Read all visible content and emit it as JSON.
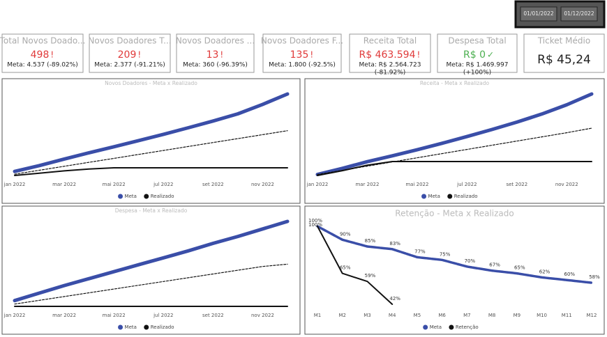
{
  "slicer": {
    "dates": [
      "01/01/2022",
      "01/12/2022"
    ]
  },
  "cards": [
    {
      "title": "Total Novos Doado...",
      "value": "498",
      "icon": "!",
      "color": "#e03a3a",
      "meta": [
        "Meta: 4.537 (-89.02%)"
      ]
    },
    {
      "title": "Novos Doadores T...",
      "value": "209",
      "icon": "!",
      "color": "#e03a3a",
      "meta": [
        "Meta: 2.377 (-91.21%)"
      ]
    },
    {
      "title": "Novos Doadores ...",
      "value": "13",
      "icon": "!",
      "color": "#e03a3a",
      "meta": [
        "Meta: 360 (-96.39%)"
      ]
    },
    {
      "title": "Novos Doadores F...",
      "value": "135",
      "icon": "!",
      "color": "#e03a3a",
      "meta": [
        "Meta: 1.800 (-92.5%)"
      ]
    },
    {
      "title": "Receita Total",
      "value": "R$ 463.594",
      "icon": "!",
      "color": "#e03a3a",
      "meta": [
        "Meta: R$ 2.564.723",
        "(-81.92%)"
      ]
    },
    {
      "title": "Despesa Total",
      "value": "R$ 0",
      "icon": "✓",
      "color": "#4caf50",
      "meta": [
        "Meta: R$ 1.469.997",
        "(+100%)"
      ]
    },
    {
      "title": "Ticket Médio",
      "value": "R$ 45,24",
      "color": "#222222",
      "meta": []
    }
  ],
  "chart_data": [
    {
      "type": "line",
      "title": "Novos Doadores - Meta x Realizado",
      "categories": [
        "jan 2022",
        null,
        "mar 2022",
        null,
        "mai 2022",
        null,
        "jul 2022",
        null,
        "set 2022",
        null,
        "nov 2022",
        null
      ],
      "series": [
        {
          "name": "Meta",
          "color": "#3a4ea8",
          "width": 5,
          "values": [
            300,
            620,
            980,
            1320,
            1650,
            1990,
            2330,
            2690,
            3060,
            3450,
            3970,
            4537
          ]
        },
        {
          "color": "#111111",
          "width": 1.2,
          "dash": true,
          "values": [
            150,
            366,
            583,
            799,
            1015,
            1232,
            1448,
            1664,
            1881,
            2097,
            2313,
            2530
          ]
        },
        {
          "name": "Realizado",
          "color": "#111111",
          "width": 2,
          "values": [
            80,
            200,
            330,
            430,
            498,
            498,
            498,
            498,
            498,
            498,
            498,
            498
          ]
        }
      ]
    },
    {
      "type": "line",
      "title": "Receita - Meta x Realizado",
      "categories": [
        "jan 2022",
        null,
        "mar 2022",
        null,
        "mai 2022",
        null,
        "jul 2022",
        null,
        "set 2022",
        null,
        "nov 2022",
        null
      ],
      "series": [
        {
          "name": "Meta",
          "color": "#3a4ea8",
          "width": 5,
          "values": [
            60000,
            250000,
            460000,
            640000,
            830000,
            1030000,
            1240000,
            1460000,
            1690000,
            1940000,
            2230000,
            2564723
          ]
        },
        {
          "color": "#111111",
          "width": 1.2,
          "dash": true,
          "values": [
            60000,
            190000,
            320000,
            450000,
            580000,
            710000,
            840000,
            970000,
            1100000,
            1230000,
            1360000,
            1500000
          ]
        },
        {
          "name": "Realizado",
          "color": "#111111",
          "width": 2,
          "values": [
            30000,
            180000,
            350000,
            463594,
            463594,
            463594,
            463594,
            463594,
            463594,
            463594,
            463594,
            463594
          ]
        }
      ]
    },
    {
      "type": "line",
      "title": "Despesa - Meta x Realizado",
      "categories": [
        "jan 2022",
        null,
        "mar 2022",
        null,
        "mai 2022",
        null,
        "jul 2022",
        null,
        "set 2022",
        null,
        "nov 2022",
        null
      ],
      "series": [
        {
          "name": "Meta",
          "color": "#3a4ea8",
          "width": 5,
          "values": [
            100000,
            230000,
            360000,
            480000,
            600000,
            720000,
            840000,
            960000,
            1090000,
            1210000,
            1340000,
            1469997
          ]
        },
        {
          "color": "#111111",
          "width": 1.2,
          "dash": true,
          "values": [
            40000,
            105000,
            170000,
            235000,
            300000,
            365000,
            430000,
            495000,
            560000,
            625000,
            690000,
            730000
          ]
        },
        {
          "name": "Realizado",
          "color": "#111111",
          "width": 2,
          "values": [
            0,
            0,
            0,
            0,
            0,
            0,
            0,
            0,
            0,
            0,
            0,
            0
          ]
        }
      ]
    },
    {
      "type": "line",
      "title": "Retenção - Meta x Realizado",
      "categories": [
        "M1",
        "M2",
        "M3",
        "M4",
        "M5",
        "M6",
        "M7",
        "M8",
        "M9",
        "M10",
        "M11",
        "M12"
      ],
      "series": [
        {
          "name": "Meta",
          "color": "#3a4ea8",
          "width": 3.5,
          "dash": true,
          "values": [
            100,
            90,
            85,
            83,
            77,
            75,
            70,
            67,
            65,
            62,
            60,
            58
          ],
          "value_labels": [
            "100%",
            "90%",
            "85%",
            "83%",
            "77%",
            "75%",
            "70%",
            "67%",
            "65%",
            "62%",
            "60%",
            "58%"
          ]
        },
        {
          "name": "Retenção",
          "color": "#111111",
          "width": 2,
          "values": [
            100,
            65,
            59,
            42,
            null,
            null,
            null,
            null,
            null,
            null,
            null,
            null
          ],
          "value_labels": [
            "100%",
            "65%",
            "59%",
            "42%",
            null,
            null,
            null,
            null,
            null,
            null,
            null,
            null
          ]
        }
      ]
    }
  ]
}
